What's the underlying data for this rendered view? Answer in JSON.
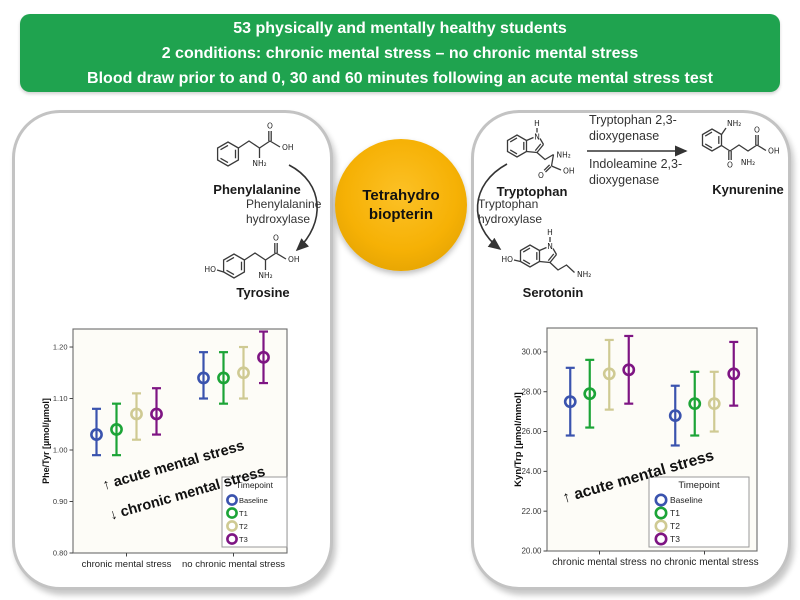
{
  "banner": {
    "bg": "#1fa34f",
    "lines": [
      "53 physically and mentally healthy students",
      "2 conditions: chronic mental stress – no chronic mental stress",
      "Blood draw prior to and 0, 30 and 60 minutes following an acute mental stress test"
    ]
  },
  "cofactor": {
    "line1": "Tetrahydro",
    "line2": "biopterin",
    "fill": "#f6b105"
  },
  "left_pathway": {
    "substrate_label": "Phenylalanine",
    "enzyme_line1": "Phenylalanine",
    "enzyme_line2": "hydroxylase",
    "product_label": "Tyrosine"
  },
  "right_pathway": {
    "substrate_label": "Tryptophan",
    "kyn_enzyme1_line1": "Tryptophan 2,3-",
    "kyn_enzyme1_line2": "dioxygenase",
    "kyn_enzyme2_line1": "Indoleamine 2,3-",
    "kyn_enzyme2_line2": "dioxygenase",
    "kyn_product_label": "Kynurenine",
    "ser_enzyme_line1": "Tryptophan",
    "ser_enzyme_line2": "hydroxylase",
    "ser_product_label": "Serotonin"
  },
  "atoms": {
    "o": "O",
    "oh": "OH",
    "ho": "HO",
    "nh2": "NH₂",
    "n": "N",
    "h": "H"
  },
  "chart_data": [
    {
      "type": "errorbar",
      "ylabel": "Phe/Tyr [µmol/µmol]",
      "categories": [
        "chronic mental stress",
        "no chronic mental stress"
      ],
      "ylim": [
        0.8,
        1.235
      ],
      "yticks": [
        0.8,
        0.9,
        1.0,
        1.1,
        1.2
      ],
      "tick_decimals": 2,
      "grid": false,
      "legend_title": "Timepoint",
      "legend_position": "bottom-right-inside",
      "series": [
        {
          "name": "Baseline",
          "color": "#3a53ae",
          "means": [
            1.03,
            1.14
          ],
          "ci_low": [
            0.99,
            1.1
          ],
          "ci_high": [
            1.08,
            1.19
          ]
        },
        {
          "name": "T1",
          "color": "#1ca437",
          "means": [
            1.04,
            1.14
          ],
          "ci_low": [
            0.99,
            1.09
          ],
          "ci_high": [
            1.09,
            1.19
          ]
        },
        {
          "name": "T2",
          "color": "#cfca93",
          "means": [
            1.07,
            1.15
          ],
          "ci_low": [
            1.02,
            1.1
          ],
          "ci_high": [
            1.11,
            1.2
          ]
        },
        {
          "name": "T3",
          "color": "#7e1583",
          "means": [
            1.07,
            1.18
          ],
          "ci_low": [
            1.03,
            1.13
          ],
          "ci_high": [
            1.12,
            1.23
          ]
        }
      ],
      "annotations": [
        "↑ acute mental stress",
        "↓ chronic mental stress"
      ]
    },
    {
      "type": "errorbar",
      "ylabel": "Kyn/Trp [µmol/mmol]",
      "categories": [
        "chronic mental stress",
        "no chronic mental stress"
      ],
      "ylim": [
        20.0,
        31.2
      ],
      "yticks": [
        20.0,
        22.0,
        24.0,
        26.0,
        28.0,
        30.0
      ],
      "tick_decimals": 2,
      "grid": false,
      "legend_title": "Timepoint",
      "legend_position": "bottom-right-inside",
      "series": [
        {
          "name": "Baseline",
          "color": "#3a53ae",
          "means": [
            27.5,
            26.8
          ],
          "ci_low": [
            25.8,
            25.3
          ],
          "ci_high": [
            29.2,
            28.3
          ]
        },
        {
          "name": "T1",
          "color": "#1ca437",
          "means": [
            27.9,
            27.4
          ],
          "ci_low": [
            26.2,
            25.8
          ],
          "ci_high": [
            29.6,
            29.0
          ]
        },
        {
          "name": "T2",
          "color": "#cfca93",
          "means": [
            28.9,
            27.4
          ],
          "ci_low": [
            27.1,
            26.0
          ],
          "ci_high": [
            30.6,
            29.0
          ]
        },
        {
          "name": "T3",
          "color": "#7e1583",
          "means": [
            29.1,
            28.9
          ],
          "ci_low": [
            27.4,
            27.3
          ],
          "ci_high": [
            30.8,
            30.5
          ]
        }
      ],
      "annotations": [
        "↑ acute mental stress"
      ]
    }
  ]
}
